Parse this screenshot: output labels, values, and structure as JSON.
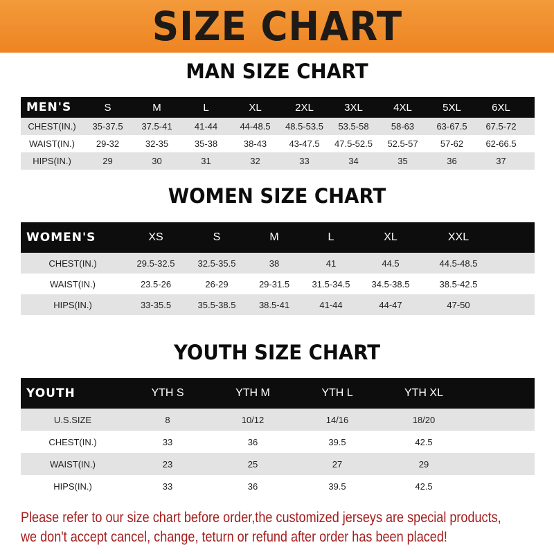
{
  "banner": {
    "title": "SIZE CHART",
    "color": "#f08a24"
  },
  "men": {
    "title": "MAN SIZE CHART",
    "header": [
      "MEN'S",
      "S",
      "M",
      "L",
      "XL",
      "2XL",
      "3XL",
      "4XL",
      "5XL",
      "6XL"
    ],
    "rows": [
      [
        "CHEST(IN.)",
        "35-37.5",
        "37.5-41",
        "41-44",
        "44-48.5",
        "48.5-53.5",
        "53.5-58",
        "58-63",
        "63-67.5",
        "67.5-72"
      ],
      [
        "WAIST(IN.)",
        "29-32",
        "32-35",
        "35-38",
        "38-43",
        "43-47.5",
        "47.5-52.5",
        "52.5-57",
        "57-62",
        "62-66.5"
      ],
      [
        "HIPS(IN.)",
        "29",
        "30",
        "31",
        "32",
        "33",
        "34",
        "35",
        "36",
        "37"
      ]
    ]
  },
  "women": {
    "title": "WOMEN SIZE CHART",
    "header": [
      "WOMEN'S",
      "XS",
      "S",
      "M",
      "L",
      "XL",
      "XXL"
    ],
    "rows": [
      [
        "CHEST(IN.)",
        "29.5-32.5",
        "32.5-35.5",
        "38",
        "41",
        "44.5",
        "44.5-48.5"
      ],
      [
        "WAIST(IN.)",
        "23.5-26",
        "26-29",
        "29-31.5",
        "31.5-34.5",
        "34.5-38.5",
        "38.5-42.5"
      ],
      [
        "HIPS(IN.)",
        "33-35.5",
        "35.5-38.5",
        "38.5-41",
        "41-44",
        "44-47",
        "47-50"
      ]
    ]
  },
  "youth": {
    "title": "YOUTH SIZE CHART",
    "header": [
      "YOUTH",
      "YTH S",
      "YTH M",
      "YTH L",
      "YTH XL"
    ],
    "rows": [
      [
        "U.S.SIZE",
        "8",
        "10/12",
        "14/16",
        "18/20"
      ],
      [
        "CHEST(IN.)",
        "33",
        "36",
        "39.5",
        "42.5"
      ],
      [
        "WAIST(IN.)",
        "23",
        "25",
        "27",
        "29"
      ],
      [
        "HIPS(IN.)",
        "33",
        "36",
        "39.5",
        "42.5"
      ]
    ]
  },
  "note": {
    "line1": "Please refer to our size chart before order,the customized jerseys are special products,",
    "line2": "we don't accept cancel, change, teturn or refund after order has been placed!",
    "color": "#a51d1d"
  }
}
